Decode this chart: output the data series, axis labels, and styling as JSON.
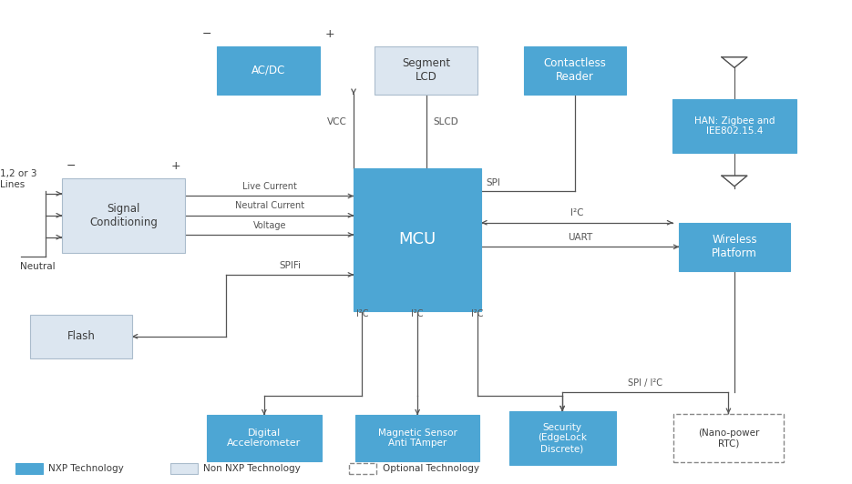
{
  "background_color": "#ffffff",
  "nxp_color": "#4da6d4",
  "non_nxp_color": "#dce6f0",
  "text_color": "#3c3c3c",
  "arrow_color": "#555555",
  "label_color": "#555555",
  "blocks": {
    "acdc": [
      0.315,
      0.855,
      0.12,
      0.1,
      "AC/DC",
      "nxp",
      8.5
    ],
    "seg_lcd": [
      0.5,
      0.855,
      0.12,
      0.1,
      "Segment\nLCD",
      "non_nxp",
      8.5
    ],
    "contactless": [
      0.675,
      0.855,
      0.12,
      0.1,
      "Contactless\nReader",
      "nxp",
      8.5
    ],
    "signal": [
      0.145,
      0.555,
      0.145,
      0.155,
      "Signal\nConditioning",
      "non_nxp",
      8.5
    ],
    "mcu": [
      0.49,
      0.505,
      0.15,
      0.295,
      "MCU",
      "nxp",
      13.0
    ],
    "han": [
      0.862,
      0.74,
      0.145,
      0.11,
      "HAN: Zigbee and\nIEE802.15.4",
      "nxp",
      7.5
    ],
    "wireless": [
      0.862,
      0.49,
      0.13,
      0.1,
      "Wireless\nPlatform",
      "nxp",
      8.5
    ],
    "flash": [
      0.095,
      0.305,
      0.12,
      0.09,
      "Flash",
      "non_nxp",
      8.5
    ],
    "dig_acc": [
      0.31,
      0.095,
      0.135,
      0.095,
      "Digital\nAccelerometer",
      "nxp",
      8.0
    ],
    "magnetic": [
      0.49,
      0.095,
      0.145,
      0.095,
      "Magnetic Sensor\nAnti TAmper",
      "nxp",
      7.5
    ],
    "security": [
      0.66,
      0.095,
      0.125,
      0.11,
      "Security\n(EdgeLock\nDiscrete)",
      "nxp",
      7.5
    ],
    "nano_rtc": [
      0.855,
      0.095,
      0.13,
      0.1,
      "(Nano-power\nRTC)",
      "optional",
      7.5
    ]
  }
}
